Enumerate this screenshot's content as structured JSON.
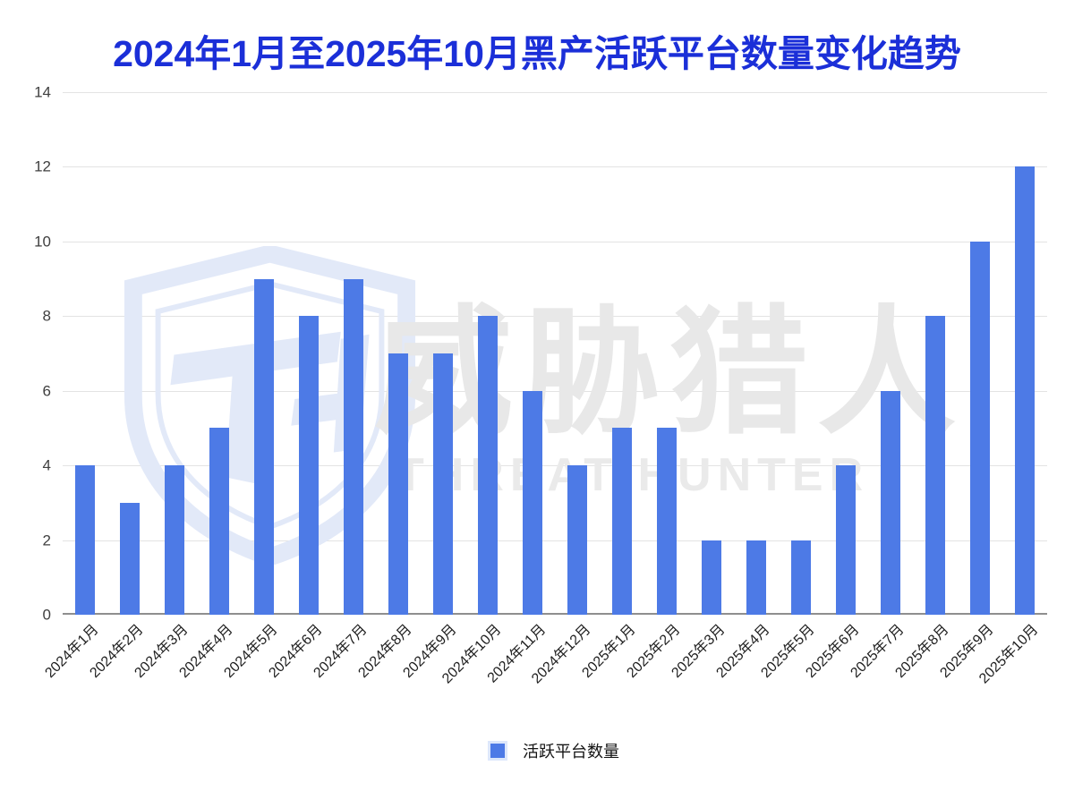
{
  "chart_data": {
    "type": "bar",
    "title": "2024年1月至2025年10月黑产活跃平台数量变化趋势",
    "legend": "活跃平台数量",
    "categories": [
      "2024年1月",
      "2024年2月",
      "2024年3月",
      "2024年4月",
      "2024年5月",
      "2024年6月",
      "2024年7月",
      "2024年8月",
      "2024年9月",
      "2024年10月",
      "2024年11月",
      "2024年12月",
      "2025年1月",
      "2025年2月",
      "2025年3月",
      "2025年4月",
      "2025年5月",
      "2025年6月",
      "2025年7月",
      "2025年8月",
      "2025年9月",
      "2025年10月"
    ],
    "values": [
      4,
      3,
      4,
      5,
      9,
      8,
      9,
      7,
      7,
      8,
      6,
      4,
      5,
      5,
      2,
      2,
      2,
      4,
      6,
      8,
      10,
      12
    ],
    "xlabel": "",
    "ylabel": "",
    "ylim": [
      0,
      14
    ],
    "yticks": [
      0,
      2,
      4,
      6,
      8,
      10,
      12,
      14
    ],
    "grid": true,
    "legend_position": "bottom-center",
    "colors": {
      "bar": "#4d7ae6",
      "title": "#1b2fd8",
      "grid": "#e3e3e3",
      "axis_line": "#8f8f8f",
      "tick_text": "#404040",
      "x_label": "#202020",
      "watermark_cn": "#e8e8e8",
      "watermark_en": "#eaeaea",
      "watermark_logo": "#e2e9f8"
    }
  },
  "watermark": {
    "cn": "威胁猎人",
    "en": "THREAT HUNTER"
  }
}
